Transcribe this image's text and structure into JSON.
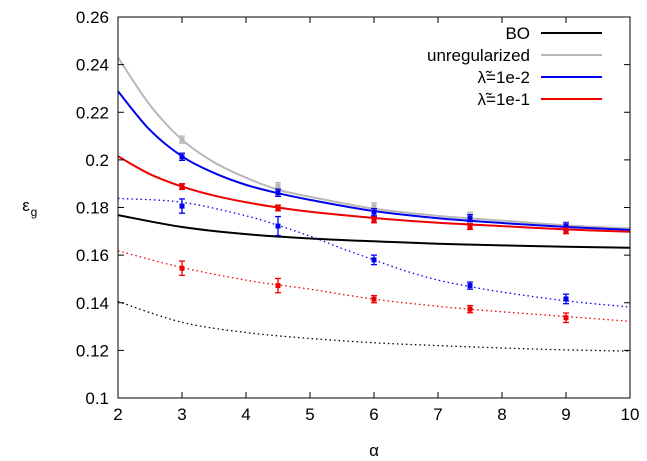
{
  "chart_data": {
    "type": "line",
    "xlabel": "α",
    "ylabel_main": "ε",
    "ylabel_sub": "g",
    "xlim": [
      2,
      10
    ],
    "ylim": [
      0.1,
      0.26
    ],
    "xticks": [
      "2",
      "3",
      "4",
      "5",
      "6",
      "7",
      "8",
      "9",
      "10"
    ],
    "yticks": [
      "0.1",
      "0.12",
      "0.14",
      "0.16",
      "0.18",
      "0.2",
      "0.22",
      "0.24",
      "0.26"
    ],
    "grid": false,
    "legend_position": "top-right",
    "colors": {
      "BO": "#000000",
      "unregularized": "#b8b8b8",
      "lambda_1e-2": "#0000ee",
      "lambda_1e-1": "#ee0000"
    },
    "series": [
      {
        "name": "BO",
        "color": "#000000",
        "style": "solid",
        "x": [
          2,
          3,
          4,
          5,
          6,
          7,
          8,
          9,
          10
        ],
        "y": [
          0.1768,
          0.1718,
          0.1688,
          0.167,
          0.1658,
          0.1648,
          0.1641,
          0.1635,
          0.1631
        ]
      },
      {
        "name": "unregularized",
        "color": "#b8b8b8",
        "style": "solid",
        "x": [
          2,
          2.5,
          3,
          3.5,
          4,
          4.5,
          5,
          6,
          7,
          8,
          9,
          10
        ],
        "y": [
          0.243,
          0.223,
          0.2085,
          0.199,
          0.1925,
          0.1875,
          0.1845,
          0.1795,
          0.1765,
          0.1745,
          0.1725,
          0.1712
        ]
      },
      {
        "name": "λ̃=1e-2",
        "color": "#0000ee",
        "style": "solid",
        "x": [
          2,
          2.5,
          3,
          3.5,
          4,
          4.5,
          5,
          6,
          7,
          8,
          9,
          10
        ],
        "y": [
          0.2288,
          0.2125,
          0.2015,
          0.1945,
          0.1895,
          0.186,
          0.1832,
          0.1785,
          0.1755,
          0.1735,
          0.1718,
          0.1706
        ]
      },
      {
        "name": "λ̃=1e-1",
        "color": "#ee0000",
        "style": "solid",
        "x": [
          2,
          2.5,
          3,
          3.5,
          4,
          4.5,
          5,
          6,
          7,
          8,
          9,
          10
        ],
        "y": [
          0.2015,
          0.194,
          0.1888,
          0.185,
          0.1822,
          0.18,
          0.1782,
          0.1756,
          0.1736,
          0.1722,
          0.1708,
          0.1698
        ]
      },
      {
        "color": "#000000",
        "style": "dotted",
        "x": [
          2,
          3,
          4,
          5,
          6,
          7,
          8,
          9,
          10
        ],
        "y": [
          0.1405,
          0.1318,
          0.1275,
          0.125,
          0.1232,
          0.122,
          0.121,
          0.1202,
          0.1197
        ]
      },
      {
        "color": "#ee0000",
        "style": "dotted",
        "x": [
          2,
          3,
          4,
          4.5,
          5,
          6,
          7,
          7.5,
          8,
          9,
          10
        ],
        "y": [
          0.1618,
          0.1548,
          0.1495,
          0.1475,
          0.1457,
          0.1415,
          0.1385,
          0.1373,
          0.1362,
          0.1342,
          0.1322
        ]
      },
      {
        "color": "#0000ee",
        "style": "dotted",
        "x": [
          2,
          3,
          4,
          4.5,
          5,
          5.5,
          6,
          6.5,
          7,
          7.5,
          8,
          9,
          10
        ],
        "y": [
          0.1838,
          0.1822,
          0.1765,
          0.1725,
          0.168,
          0.1628,
          0.158,
          0.1533,
          0.1495,
          0.1468,
          0.1445,
          0.1408,
          0.1382
        ]
      }
    ],
    "data_points": [
      {
        "color": "#b8b8b8",
        "x": [
          3,
          4.5,
          6,
          7.5,
          9
        ],
        "y": [
          0.2085,
          0.189,
          0.1805,
          0.1765,
          0.1725
        ],
        "err": [
          0.0015,
          0.0015,
          0.0015,
          0.0015,
          0.0015
        ]
      },
      {
        "color": "#0000ee",
        "x": [
          3,
          4.5,
          6,
          7.5,
          9
        ],
        "y": [
          0.2013,
          0.1862,
          0.178,
          0.1755,
          0.172
        ],
        "err": [
          0.0015,
          0.0015,
          0.0015,
          0.0015,
          0.0015
        ]
      },
      {
        "color": "#ee0000",
        "x": [
          3,
          4.5,
          6,
          7.5,
          9
        ],
        "y": [
          0.1888,
          0.1798,
          0.1748,
          0.172,
          0.1702
        ],
        "err": [
          0.0012,
          0.0012,
          0.0012,
          0.0012,
          0.0012
        ]
      },
      {
        "color": "#0000ee",
        "x": [
          3,
          4.5,
          6,
          7.5,
          9
        ],
        "y": [
          0.1806,
          0.1722,
          0.158,
          0.1472,
          0.1416
        ],
        "err": [
          0.003,
          0.004,
          0.002,
          0.0015,
          0.002
        ]
      },
      {
        "color": "#ee0000",
        "x": [
          3,
          4.5,
          6,
          7.5,
          9
        ],
        "y": [
          0.1545,
          0.1472,
          0.1415,
          0.1373,
          0.1337
        ],
        "err": [
          0.003,
          0.003,
          0.0015,
          0.0015,
          0.002
        ]
      }
    ],
    "legend": [
      {
        "label": "BO",
        "color": "#000000"
      },
      {
        "label": "unregularized",
        "color": "#b8b8b8"
      },
      {
        "label": "λ̃=1e-2",
        "color": "#0000ee"
      },
      {
        "label": "λ̃=1e-1",
        "color": "#ee0000"
      }
    ]
  }
}
